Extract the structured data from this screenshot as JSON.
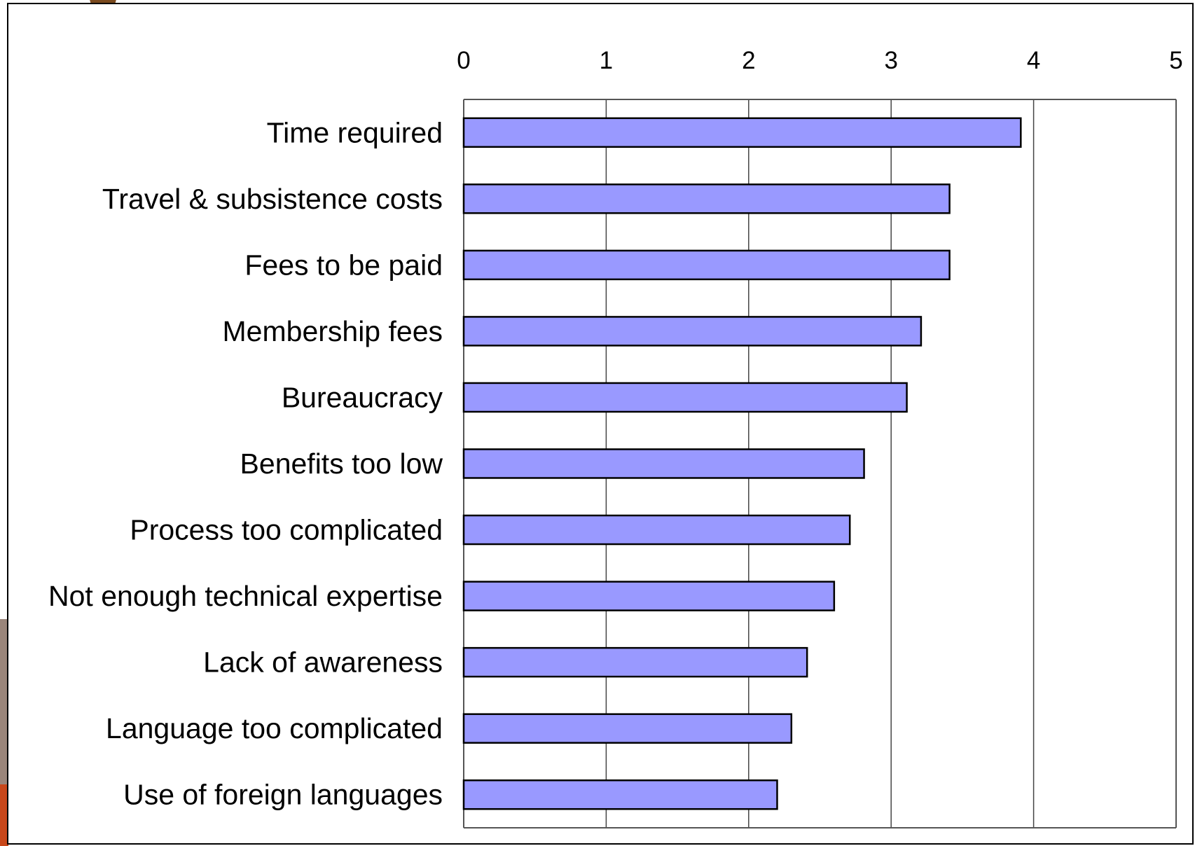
{
  "chart_data": {
    "type": "bar",
    "orientation": "horizontal",
    "categories": [
      "Time required",
      "Travel & subsistence costs",
      "Fees to be paid",
      "Membership fees",
      "Bureaucracy",
      "Benefits too low",
      "Process too complicated",
      "Not enough technical expertise",
      "Lack of awareness",
      "Language too complicated",
      "Use of foreign languages"
    ],
    "values": [
      3.91,
      3.41,
      3.41,
      3.21,
      3.11,
      2.81,
      2.71,
      2.6,
      2.41,
      2.3,
      2.2
    ],
    "xlim": [
      0,
      5
    ],
    "x_ticks": [
      0,
      1,
      2,
      3,
      4,
      5
    ],
    "x_tick_labels": [
      "0",
      "1",
      "2",
      "3",
      "4",
      "5"
    ],
    "x_axis_position": "top",
    "grid": "vertical",
    "legend": "none",
    "bar_color": "#9999ff",
    "bar_edge_color": "#000000",
    "title": "",
    "xlabel": "",
    "ylabel": ""
  }
}
